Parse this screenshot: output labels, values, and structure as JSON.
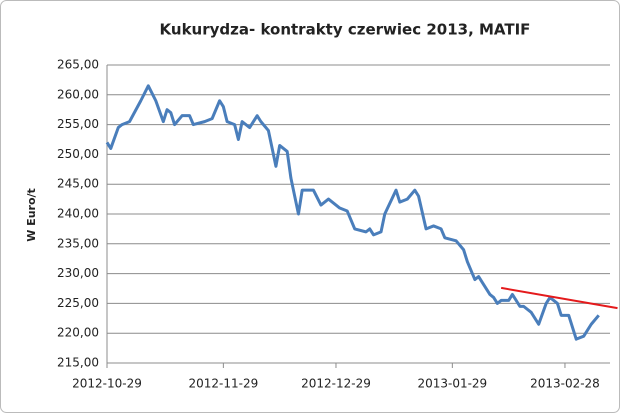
{
  "chart_data": {
    "type": "line",
    "title": "Kukurydza- kontrakty czerwiec 2013, MATIF",
    "y_label": "W Euro/t",
    "color": "#4a7ebb",
    "grid": true,
    "x": [
      "2012-10-29",
      "2012-10-30",
      "2012-11-01",
      "2012-11-02",
      "2012-11-04",
      "2012-11-07",
      "2012-11-09",
      "2012-11-11",
      "2012-11-13",
      "2012-11-14",
      "2012-11-15",
      "2012-11-16",
      "2012-11-18",
      "2012-11-20",
      "2012-11-21",
      "2012-11-24",
      "2012-11-26",
      "2012-11-28",
      "2012-11-29",
      "2012-11-30",
      "2012-12-02",
      "2012-12-03",
      "2012-12-04",
      "2012-12-06",
      "2012-12-08",
      "2012-12-09",
      "2012-12-11",
      "2012-12-12",
      "2012-12-13",
      "2012-12-14",
      "2012-12-16",
      "2012-12-17",
      "2012-12-19",
      "2012-12-20",
      "2012-12-23",
      "2012-12-25",
      "2012-12-27",
      "2012-12-30",
      "2013-01-01",
      "2013-01-03",
      "2013-01-06",
      "2013-01-07",
      "2013-01-08",
      "2013-01-10",
      "2013-01-11",
      "2013-01-14",
      "2013-01-15",
      "2013-01-17",
      "2013-01-19",
      "2013-01-20",
      "2013-01-22",
      "2013-01-24",
      "2013-01-26",
      "2013-01-27",
      "2013-01-30",
      "2013-02-01",
      "2013-02-02",
      "2013-02-04",
      "2013-02-05",
      "2013-02-06",
      "2013-02-08",
      "2013-02-09",
      "2013-02-10",
      "2013-02-11",
      "2013-02-13",
      "2013-02-14",
      "2013-02-16",
      "2013-02-17",
      "2013-02-19",
      "2013-02-21",
      "2013-02-23",
      "2013-02-24",
      "2013-02-26",
      "2013-02-27",
      "2013-03-01",
      "2013-03-03",
      "2013-03-05",
      "2013-03-07",
      "2013-03-09"
    ],
    "values": [
      252,
      251,
      254.5,
      255,
      255.5,
      259,
      261.5,
      259,
      255.5,
      257.5,
      257,
      255,
      256.5,
      256.5,
      255,
      255.5,
      256,
      259,
      258,
      255.5,
      255,
      252.5,
      255.5,
      254.5,
      256.5,
      255.5,
      254,
      251,
      248,
      251.5,
      250.5,
      246,
      240,
      244,
      244,
      241.5,
      242.5,
      241,
      240.5,
      237.5,
      237,
      237.5,
      236.5,
      237,
      240,
      244,
      242,
      242.5,
      244,
      243,
      237.5,
      238,
      237.5,
      236,
      235.5,
      234,
      232,
      229,
      229.5,
      228.5,
      226.5,
      226,
      225,
      225.5,
      225.5,
      226.5,
      224.5,
      224.5,
      223.5,
      221.5,
      225,
      226,
      225,
      223,
      223,
      219,
      219.5,
      221.5,
      223
    ],
    "trend_line": {
      "x": [
        "2013-02-11",
        "2013-03-14"
      ],
      "values": [
        227.6,
        224.2
      ],
      "color": "#e41a1c"
    },
    "xlim": [
      "2012-10-29",
      "2013-03-12"
    ],
    "xticks": [
      "2012-10-29",
      "2012-11-29",
      "2012-12-29",
      "2013-01-29",
      "2013-02-28"
    ],
    "ylim": [
      215,
      265
    ],
    "yticks": [
      {
        "value": 215,
        "label": "215,00"
      },
      {
        "value": 220,
        "label": "220,00"
      },
      {
        "value": 225,
        "label": "225,00"
      },
      {
        "value": 230,
        "label": "230,00"
      },
      {
        "value": 235,
        "label": "235,00"
      },
      {
        "value": 240,
        "label": "240,00"
      },
      {
        "value": 245,
        "label": "245,00"
      },
      {
        "value": 250,
        "label": "250,00"
      },
      {
        "value": 255,
        "label": "255,00"
      },
      {
        "value": 260,
        "label": "260,00"
      },
      {
        "value": 265,
        "label": "265,00"
      }
    ]
  }
}
